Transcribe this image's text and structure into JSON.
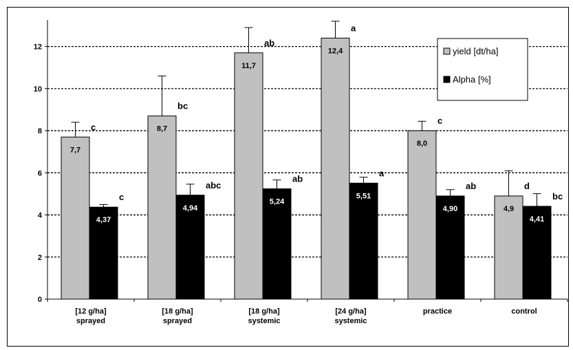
{
  "chart_data": {
    "type": "bar",
    "title": "",
    "xlabel": "",
    "ylabel": "",
    "ylim": [
      0,
      13
    ],
    "yticks": [
      0,
      2,
      4,
      6,
      8,
      10,
      12
    ],
    "grid": "horizontal dashed",
    "legend_position": "top-right",
    "categories": [
      [
        "[12 g/ha]",
        "sprayed"
      ],
      [
        "[18 g/ha]",
        "sprayed"
      ],
      [
        "[18 g/ha]",
        "systemic"
      ],
      [
        "[24 g/ha]",
        "systemic"
      ],
      [
        "practice"
      ],
      [
        "control"
      ]
    ],
    "series": [
      {
        "name": "yield [dt/ha]",
        "color": "#c0c0c0",
        "label_color": "#000000",
        "values": [
          7.7,
          8.7,
          11.7,
          12.4,
          8.0,
          4.9
        ],
        "value_labels": [
          "7,7",
          "8,7",
          "11,7",
          "12,4",
          "8,0",
          "4,9"
        ],
        "error": [
          0.7,
          1.9,
          1.2,
          0.8,
          0.45,
          1.2
        ],
        "significance": [
          "c",
          "bc",
          "ab",
          "a",
          "c",
          "d"
        ]
      },
      {
        "name": "Alpha [%]",
        "color": "#000000",
        "label_color": "#ffffff",
        "values": [
          4.37,
          4.94,
          5.24,
          5.51,
          4.9,
          4.41
        ],
        "value_labels": [
          "4,37",
          "4,94",
          "5,24",
          "5,51",
          "4,90",
          "4,41"
        ],
        "error": [
          0.12,
          0.52,
          0.42,
          0.28,
          0.3,
          0.6
        ],
        "significance": [
          "c",
          "abc",
          "ab",
          "a",
          "ab",
          "bc"
        ]
      }
    ]
  }
}
